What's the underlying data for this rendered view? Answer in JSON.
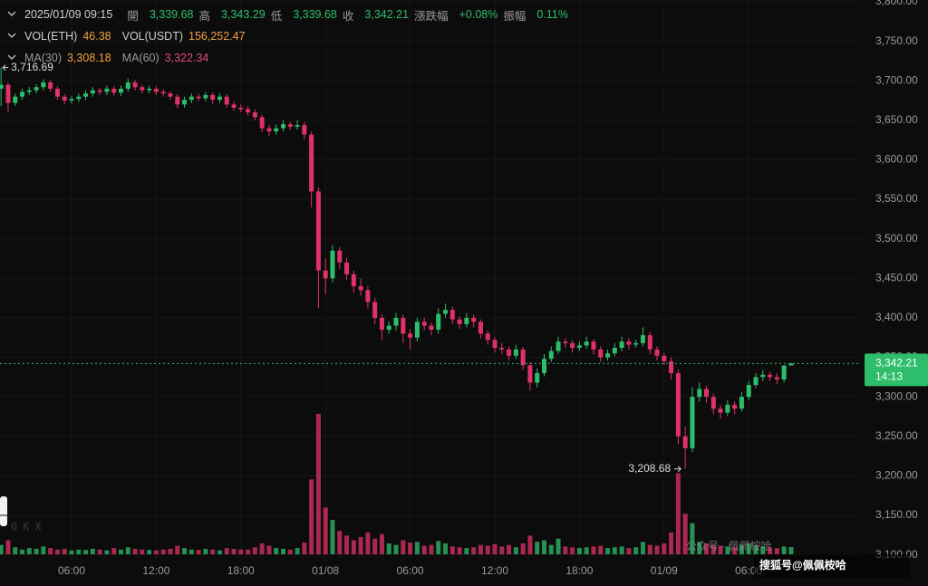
{
  "chart_data": {
    "type": "candlestick",
    "info_rows": [
      [
        {
          "text": "2025/01/09 09:15",
          "color": "#cfcfcf"
        },
        {
          "text": "開",
          "color": "#9a9a9a"
        },
        {
          "text": "3,339.68",
          "color": "#2ebd6b"
        },
        {
          "text": "高",
          "color": "#9a9a9a"
        },
        {
          "text": "3,343.29",
          "color": "#2ebd6b"
        },
        {
          "text": "低",
          "color": "#9a9a9a"
        },
        {
          "text": "3,339.68",
          "color": "#2ebd6b"
        },
        {
          "text": "收",
          "color": "#9a9a9a"
        },
        {
          "text": "3,342.21",
          "color": "#2ebd6b"
        },
        {
          "text": "漲跌幅",
          "color": "#9a9a9a"
        },
        {
          "text": "+0.08%",
          "color": "#2ebd6b"
        },
        {
          "text": "振幅",
          "color": "#9a9a9a"
        },
        {
          "text": "0.11%",
          "color": "#2ebd6b"
        }
      ],
      [
        {
          "text": "VOL(ETH)",
          "color": "#cfcfcf"
        },
        {
          "text": "46.38",
          "color": "#f0a040"
        },
        {
          "text": "VOL(USDT)",
          "color": "#cfcfcf"
        },
        {
          "text": "156,252.47",
          "color": "#f0a040"
        }
      ],
      [
        {
          "text": "MA(30)",
          "color": "#9a9a9a"
        },
        {
          "text": "3,308.18",
          "color": "#f0a040"
        },
        {
          "text": "MA(60)",
          "color": "#9a9a9a"
        },
        {
          "text": "3,322.34",
          "color": "#e24a82"
        }
      ]
    ],
    "up_color": "#2ebd6b",
    "down_color": "#e0316a",
    "grid": true,
    "x": [
      "01/07 01:00",
      "01/07 01:30",
      "01/07 02:00",
      "01/07 02:30",
      "01/07 03:00",
      "01/07 03:30",
      "01/07 04:00",
      "01/07 04:30",
      "01/07 05:00",
      "01/07 05:30",
      "01/07 06:00",
      "01/07 06:30",
      "01/07 07:00",
      "01/07 07:30",
      "01/07 08:00",
      "01/07 08:30",
      "01/07 09:00",
      "01/07 09:30",
      "01/07 10:00",
      "01/07 10:30",
      "01/07 11:00",
      "01/07 11:30",
      "01/07 12:00",
      "01/07 12:30",
      "01/07 13:00",
      "01/07 13:30",
      "01/07 14:00",
      "01/07 14:30",
      "01/07 15:00",
      "01/07 15:30",
      "01/07 16:00",
      "01/07 16:30",
      "01/07 17:00",
      "01/07 17:30",
      "01/07 18:00",
      "01/07 18:30",
      "01/07 19:00",
      "01/07 19:30",
      "01/07 20:00",
      "01/07 20:30",
      "01/07 21:00",
      "01/07 21:30",
      "01/07 22:00",
      "01/07 22:30",
      "01/07 23:00",
      "01/07 23:30",
      "01/08 00:00",
      "01/08 00:30",
      "01/08 01:00",
      "01/08 01:30",
      "01/08 02:00",
      "01/08 02:30",
      "01/08 03:00",
      "01/08 03:30",
      "01/08 04:00",
      "01/08 04:30",
      "01/08 05:00",
      "01/08 05:30",
      "01/08 06:00",
      "01/08 06:30",
      "01/08 07:00",
      "01/08 07:30",
      "01/08 08:00",
      "01/08 08:30",
      "01/08 09:00",
      "01/08 09:30",
      "01/08 10:00",
      "01/08 10:30",
      "01/08 11:00",
      "01/08 11:30",
      "01/08 12:00",
      "01/08 12:30",
      "01/08 13:00",
      "01/08 13:30",
      "01/08 14:00",
      "01/08 14:30",
      "01/08 15:00",
      "01/08 15:30",
      "01/08 16:00",
      "01/08 16:30",
      "01/08 17:00",
      "01/08 17:30",
      "01/08 18:00",
      "01/08 18:30",
      "01/08 19:00",
      "01/08 19:30",
      "01/08 20:00",
      "01/08 20:30",
      "01/08 21:00",
      "01/08 21:30",
      "01/08 22:00",
      "01/08 22:30",
      "01/08 23:00",
      "01/08 23:30",
      "01/09 00:00",
      "01/09 00:30",
      "01/09 01:00",
      "01/09 01:30",
      "01/09 02:00",
      "01/09 02:30",
      "01/09 03:00",
      "01/09 03:30",
      "01/09 04:00",
      "01/09 04:30",
      "01/09 05:00",
      "01/09 05:30",
      "01/09 06:00",
      "01/09 06:30",
      "01/09 07:00",
      "01/09 07:30",
      "01/09 08:00",
      "01/09 08:30",
      "01/09 09:00"
    ],
    "open": [
      3690,
      3695,
      3672,
      3680,
      3686,
      3688,
      3692,
      3698,
      3690,
      3680,
      3675,
      3677,
      3680,
      3684,
      3688,
      3686,
      3690,
      3685,
      3690,
      3698,
      3692,
      3688,
      3690,
      3686,
      3684,
      3680,
      3670,
      3676,
      3680,
      3678,
      3682,
      3676,
      3680,
      3670,
      3666,
      3664,
      3660,
      3654,
      3640,
      3636,
      3640,
      3645,
      3642,
      3644,
      3632,
      3560,
      3460,
      3450,
      3485,
      3470,
      3455,
      3440,
      3435,
      3420,
      3400,
      3385,
      3390,
      3400,
      3380,
      3375,
      3395,
      3390,
      3385,
      3405,
      3410,
      3398,
      3392,
      3400,
      3395,
      3380,
      3372,
      3362,
      3360,
      3352,
      3360,
      3340,
      3318,
      3330,
      3348,
      3358,
      3370,
      3368,
      3362,
      3365,
      3370,
      3360,
      3350,
      3355,
      3362,
      3370,
      3366,
      3368,
      3378,
      3360,
      3352,
      3345,
      3330,
      3250,
      3235,
      3300,
      3310,
      3300,
      3285,
      3280,
      3290,
      3285,
      3300,
      3315,
      3325,
      3328,
      3325,
      3322,
      3339.68
    ],
    "high": [
      3716.69,
      3698,
      3684,
      3690,
      3692,
      3696,
      3702,
      3701,
      3693,
      3683,
      3681,
      3684,
      3688,
      3692,
      3691,
      3694,
      3693,
      3694,
      3703,
      3701,
      3695,
      3694,
      3693,
      3689,
      3687,
      3683,
      3680,
      3684,
      3684,
      3686,
      3685,
      3684,
      3683,
      3674,
      3670,
      3668,
      3664,
      3657,
      3644,
      3645,
      3650,
      3648,
      3650,
      3648,
      3636,
      3565,
      3475,
      3492,
      3490,
      3476,
      3460,
      3450,
      3440,
      3425,
      3405,
      3396,
      3406,
      3404,
      3386,
      3400,
      3400,
      3394,
      3412,
      3418,
      3414,
      3402,
      3406,
      3404,
      3398,
      3384,
      3376,
      3368,
      3364,
      3366,
      3363,
      3344,
      3336,
      3354,
      3364,
      3376,
      3374,
      3372,
      3370,
      3376,
      3373,
      3364,
      3360,
      3368,
      3376,
      3374,
      3372,
      3388,
      3382,
      3364,
      3356,
      3350,
      3334,
      3262,
      3312,
      3318,
      3314,
      3304,
      3290,
      3296,
      3294,
      3306,
      3320,
      3330,
      3334,
      3332,
      3330,
      3336,
      3343.29
    ],
    "low": [
      3668,
      3660,
      3668,
      3676,
      3682,
      3684,
      3688,
      3686,
      3676,
      3670,
      3671,
      3673,
      3676,
      3680,
      3682,
      3682,
      3681,
      3681,
      3686,
      3688,
      3684,
      3684,
      3682,
      3680,
      3676,
      3665,
      3666,
      3672,
      3674,
      3674,
      3671,
      3672,
      3666,
      3662,
      3660,
      3656,
      3650,
      3635,
      3630,
      3632,
      3636,
      3638,
      3638,
      3626,
      3540,
      3412,
      3430,
      3445,
      3462,
      3448,
      3432,
      3428,
      3412,
      3392,
      3372,
      3380,
      3384,
      3368,
      3360,
      3370,
      3384,
      3378,
      3380,
      3400,
      3392,
      3386,
      3388,
      3388,
      3374,
      3366,
      3356,
      3354,
      3346,
      3348,
      3334,
      3308,
      3312,
      3326,
      3344,
      3354,
      3362,
      3356,
      3358,
      3361,
      3354,
      3344,
      3346,
      3351,
      3358,
      3360,
      3362,
      3364,
      3354,
      3346,
      3340,
      3322,
      3240,
      3208.68,
      3230,
      3294,
      3292,
      3278,
      3272,
      3276,
      3278,
      3281,
      3296,
      3311,
      3320,
      3320,
      3316,
      3318,
      3339.68
    ],
    "close": [
      3695,
      3672,
      3680,
      3686,
      3688,
      3692,
      3698,
      3690,
      3680,
      3675,
      3677,
      3680,
      3684,
      3688,
      3686,
      3690,
      3685,
      3690,
      3698,
      3692,
      3688,
      3690,
      3686,
      3684,
      3680,
      3670,
      3676,
      3680,
      3678,
      3682,
      3676,
      3680,
      3670,
      3666,
      3664,
      3660,
      3654,
      3640,
      3636,
      3640,
      3645,
      3642,
      3644,
      3632,
      3560,
      3460,
      3450,
      3485,
      3470,
      3455,
      3440,
      3435,
      3420,
      3400,
      3385,
      3390,
      3400,
      3380,
      3375,
      3395,
      3390,
      3385,
      3405,
      3410,
      3398,
      3392,
      3400,
      3395,
      3380,
      3372,
      3362,
      3360,
      3352,
      3360,
      3340,
      3318,
      3330,
      3348,
      3358,
      3370,
      3368,
      3362,
      3365,
      3370,
      3360,
      3350,
      3355,
      3362,
      3370,
      3366,
      3368,
      3378,
      3360,
      3352,
      3345,
      3330,
      3250,
      3235,
      3300,
      3310,
      3300,
      3285,
      3280,
      3290,
      3285,
      3300,
      3315,
      3325,
      3328,
      3325,
      3322,
      3339.68,
      3342.21
    ],
    "volume": [
      60,
      90,
      45,
      30,
      40,
      35,
      50,
      40,
      30,
      35,
      25,
      30,
      28,
      35,
      30,
      25,
      40,
      30,
      45,
      35,
      30,
      28,
      25,
      30,
      35,
      55,
      40,
      30,
      28,
      35,
      30,
      25,
      40,
      35,
      30,
      30,
      45,
      70,
      55,
      40,
      35,
      30,
      40,
      75,
      480,
      900,
      300,
      220,
      150,
      120,
      90,
      110,
      140,
      100,
      130,
      70,
      60,
      90,
      75,
      80,
      55,
      60,
      85,
      70,
      50,
      45,
      40,
      45,
      60,
      55,
      65,
      50,
      60,
      45,
      70,
      120,
      80,
      90,
      60,
      100,
      50,
      45,
      40,
      45,
      50,
      55,
      40,
      45,
      50,
      40,
      45,
      80,
      60,
      55,
      70,
      140,
      520,
      260,
      200,
      80,
      70,
      60,
      55,
      50,
      45,
      60,
      70,
      55,
      50,
      45,
      40,
      50,
      46.38
    ],
    "ylim": [
      3100,
      3800
    ],
    "yticks": [
      {
        "value": 3100,
        "label": "3,100.00"
      },
      {
        "value": 3150,
        "label": "3,150.00"
      },
      {
        "value": 3200,
        "label": "3,200.00"
      },
      {
        "value": 3250,
        "label": "3,250.00"
      },
      {
        "value": 3300,
        "label": "3,300.00"
      },
      {
        "value": 3350,
        "label": "3,350.00"
      },
      {
        "value": 3400,
        "label": "3,400.00"
      },
      {
        "value": 3450,
        "label": "3,450.00"
      },
      {
        "value": 3500,
        "label": "3,500.00"
      },
      {
        "value": 3550,
        "label": "3,550.00"
      },
      {
        "value": 3600,
        "label": "3,600.00"
      },
      {
        "value": 3650,
        "label": "3,650.00"
      },
      {
        "value": 3700,
        "label": "3,700.00"
      },
      {
        "value": 3750,
        "label": "3,750.00"
      },
      {
        "value": 3800,
        "label": "3,800.00"
      }
    ],
    "xticks": [
      {
        "value": "01/07 06:00",
        "label": "06:00"
      },
      {
        "value": "01/07 12:00",
        "label": "12:00"
      },
      {
        "value": "01/07 18:00",
        "label": "18:00"
      },
      {
        "value": "01/08 00:00",
        "label": "01/08"
      },
      {
        "value": "01/08 06:00",
        "label": "06:00"
      },
      {
        "value": "01/08 12:00",
        "label": "12:00"
      },
      {
        "value": "01/08 18:00",
        "label": "18:00"
      },
      {
        "value": "01/09 00:00",
        "label": "01/09"
      },
      {
        "value": "01/09 06:00",
        "label": "06:00"
      }
    ],
    "annotations": [
      {
        "x": "01/07 01:00",
        "value": 3716.69,
        "label": "3,716.69"
      },
      {
        "x": "01/09 01:30",
        "value": 3208.68,
        "label": "3,208.68"
      }
    ],
    "current_price": {
      "value": 3342.21,
      "label": "3,342.21",
      "countdown": "14:13",
      "color": "#2ebd6b"
    },
    "watermark_logo": "OKX",
    "watermarks": [
      "公众号 · 佩佩桉哈",
      "搜狐号@佩佩桉哈"
    ]
  }
}
